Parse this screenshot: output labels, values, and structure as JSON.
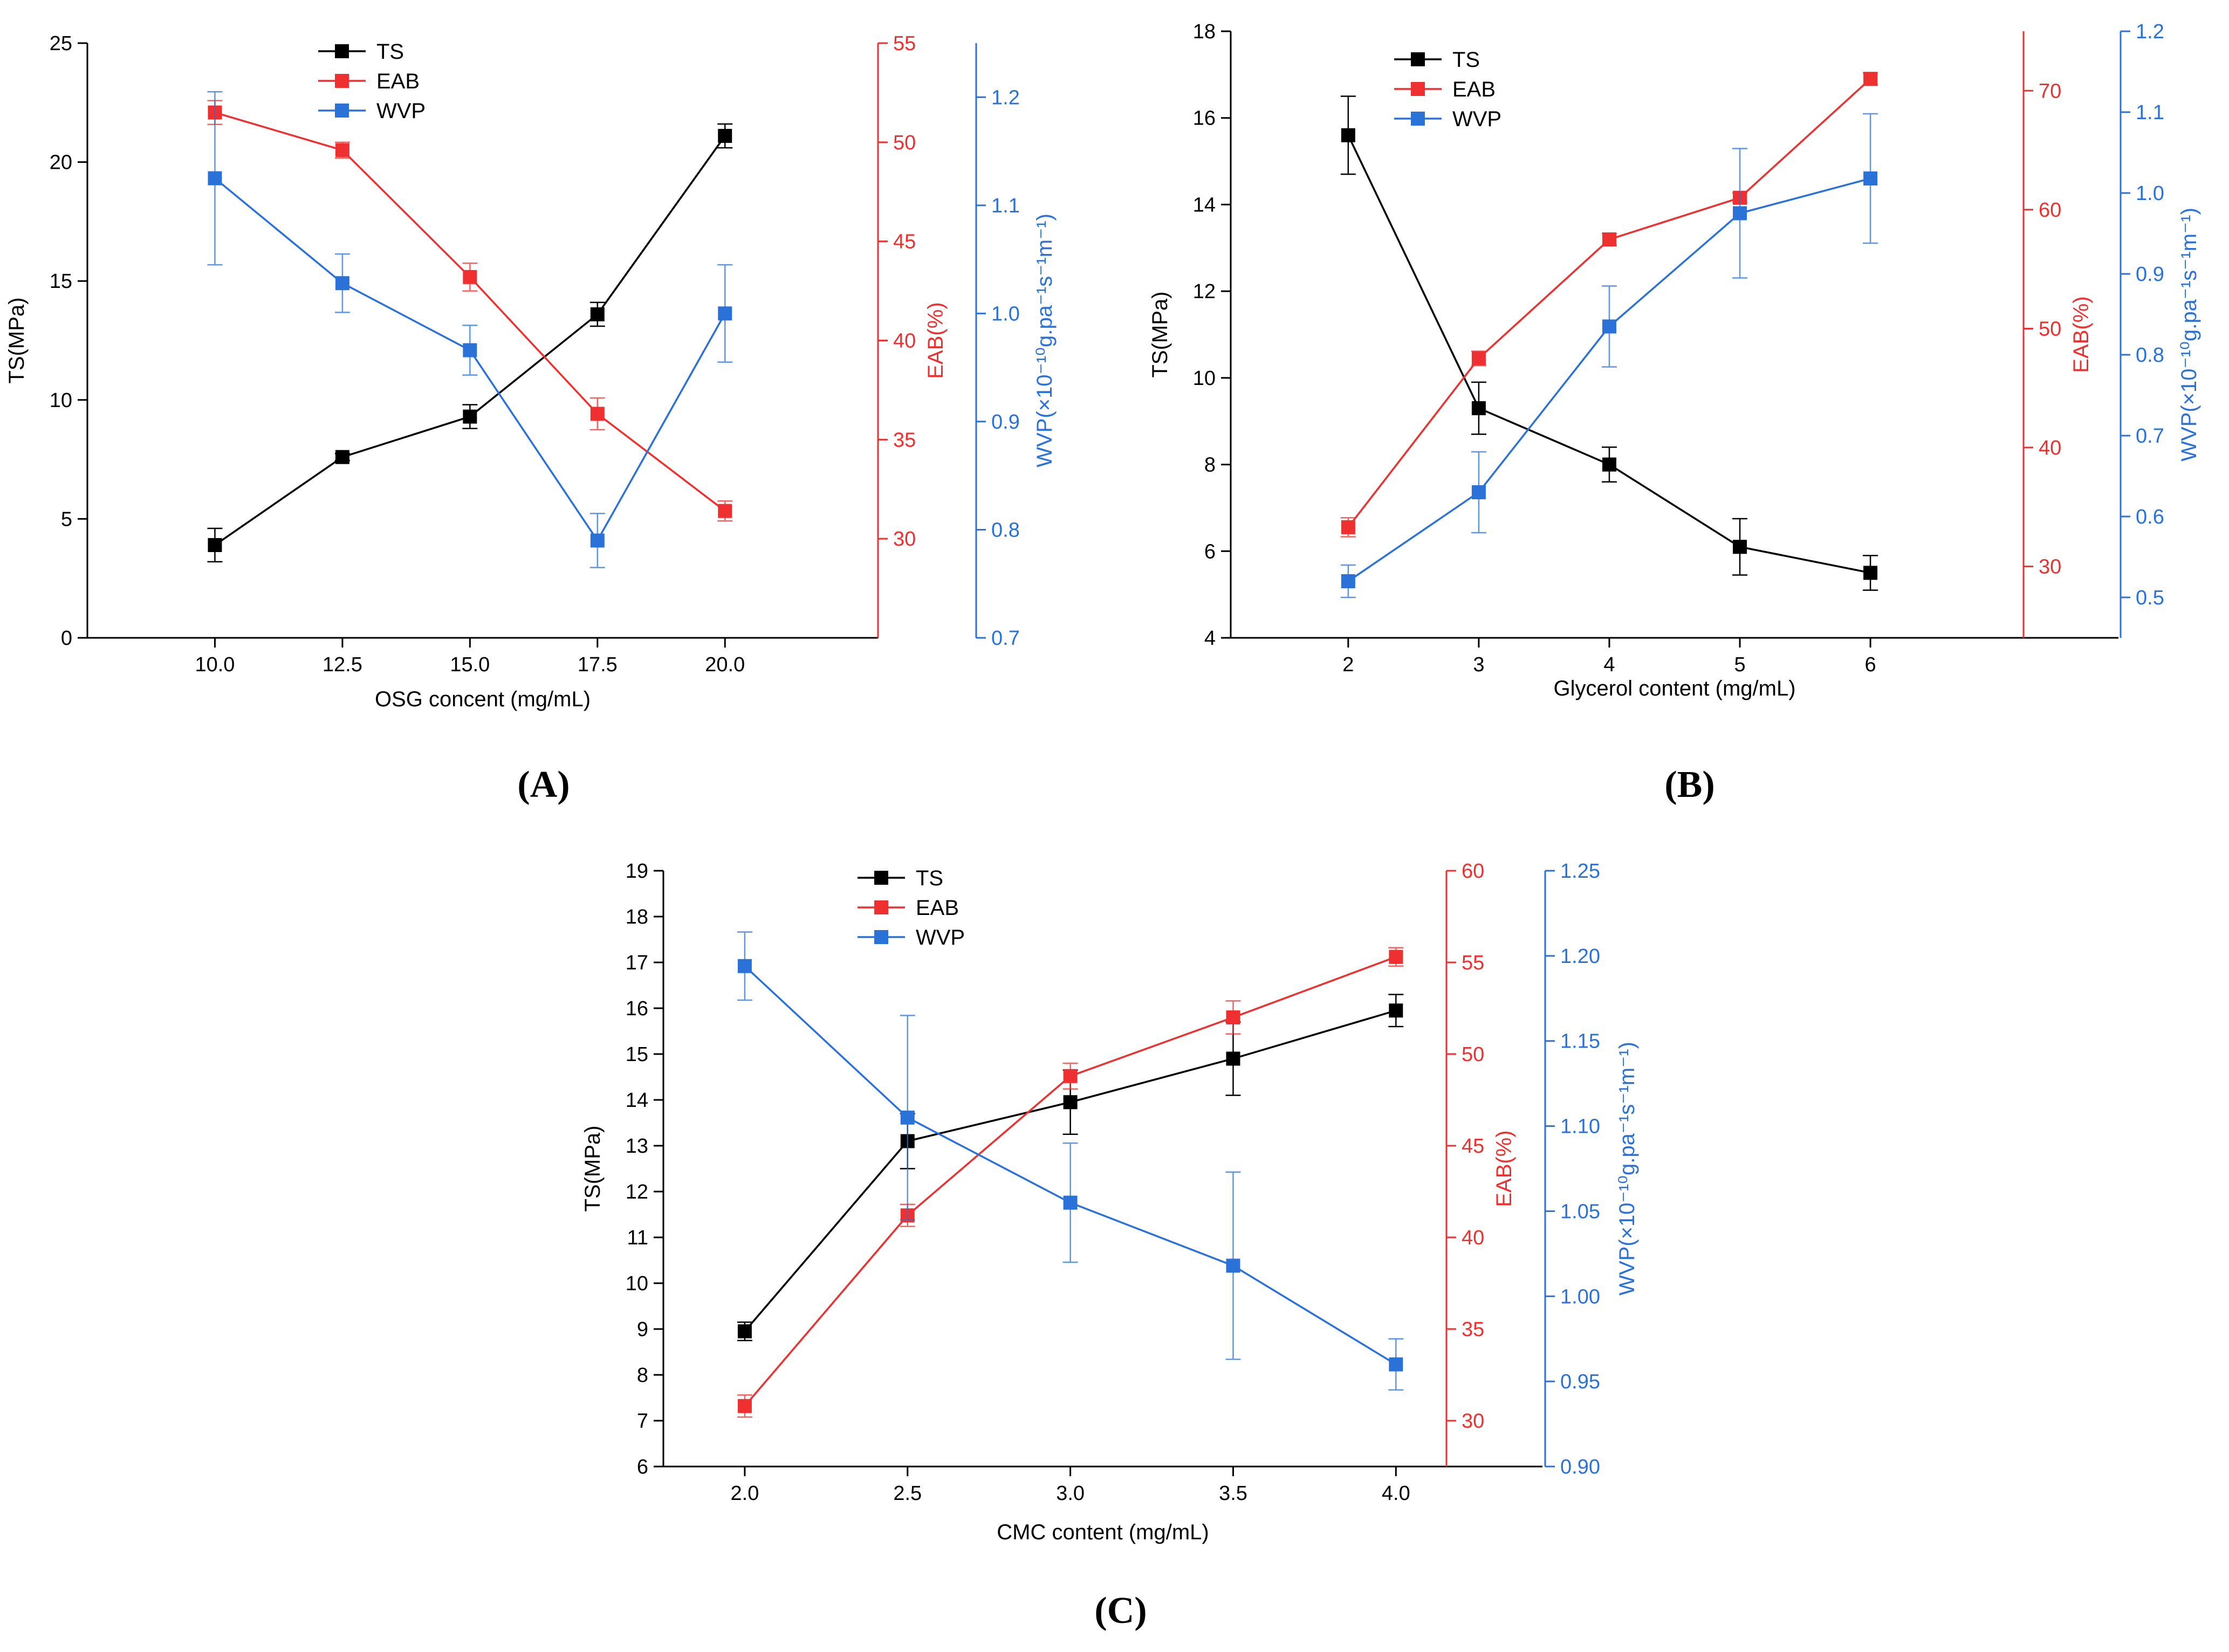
{
  "colors": {
    "TS": "#000000",
    "EAB": "#ee3030",
    "WVP": "#2a72d8",
    "axis": "#000000"
  },
  "chart_data": [
    {
      "panel": "(A)",
      "type": "line",
      "xlabel": "OSG concent (mg/mL)",
      "x": [
        10.0,
        12.5,
        15.0,
        17.5,
        20.0
      ],
      "xticks": [
        "10.0",
        "12.5",
        "15.0",
        "17.5",
        "20.0"
      ],
      "xlim": [
        7.5,
        23.0
      ],
      "axes": {
        "TS": {
          "label": "TS(MPa)",
          "lim": [
            0,
            25
          ],
          "ticks": [
            "0",
            "5",
            "10",
            "15",
            "20",
            "25"
          ]
        },
        "EAB": {
          "label": "EAB(%)",
          "lim": [
            25,
            55
          ],
          "ticks": [
            "30",
            "35",
            "40",
            "45",
            "50",
            "55"
          ]
        },
        "WVP": {
          "label": "WVP(×10⁻¹⁰g.pa⁻¹s⁻¹m⁻¹)",
          "lim": [
            0.7,
            1.25
          ],
          "ticks": [
            "0.7",
            "0.8",
            "0.9",
            "1.0",
            "1.1",
            "1.2"
          ]
        }
      },
      "legend": [
        "TS",
        "EAB",
        "WVP"
      ],
      "legend_position": "top-center",
      "series": [
        {
          "name": "TS",
          "values": [
            3.9,
            7.6,
            9.3,
            13.6,
            21.1
          ],
          "errors": [
            0.7,
            0.15,
            0.5,
            0.5,
            0.5
          ]
        },
        {
          "name": "EAB",
          "values": [
            51.5,
            49.6,
            43.2,
            36.3,
            31.4
          ],
          "errors": [
            0.6,
            0.4,
            0.7,
            0.8,
            0.5
          ]
        },
        {
          "name": "WVP",
          "values": [
            1.125,
            1.028,
            0.966,
            0.79,
            1.0
          ],
          "errors": [
            0.08,
            0.027,
            0.023,
            0.025,
            0.045
          ]
        }
      ]
    },
    {
      "panel": "(B)",
      "type": "line",
      "xlabel": "Glycerol content (mg/mL)",
      "x": [
        2,
        3,
        4,
        5,
        6
      ],
      "xticks": [
        "2",
        "3",
        "4",
        "5",
        "6"
      ],
      "xlim": [
        1.1,
        7.9
      ],
      "axes": {
        "TS": {
          "label": "TS(MPa)",
          "lim": [
            4,
            18
          ],
          "ticks": [
            "4",
            "6",
            "8",
            "10",
            "12",
            "14",
            "16",
            "18"
          ]
        },
        "EAB": {
          "label": "EAB(%)",
          "lim": [
            24,
            75
          ],
          "ticks": [
            "30",
            "40",
            "50",
            "60",
            "70"
          ]
        },
        "WVP": {
          "label": "WVP(×10⁻¹⁰g.pa⁻¹s⁻¹m⁻¹)",
          "lim": [
            0.45,
            1.2
          ],
          "ticks": [
            "0.5",
            "0.6",
            "0.7",
            "0.8",
            "0.9",
            "1.0",
            "1.1",
            "1.2"
          ]
        }
      },
      "legend": [
        "TS",
        "EAB",
        "WVP"
      ],
      "legend_position": "top-left",
      "series": [
        {
          "name": "TS",
          "values": [
            15.6,
            9.3,
            8.0,
            6.1,
            5.5
          ],
          "errors": [
            0.9,
            0.6,
            0.4,
            0.65,
            0.4
          ]
        },
        {
          "name": "EAB",
          "values": [
            33.3,
            47.5,
            57.5,
            61.0,
            71.0
          ],
          "errors": [
            0.8,
            0.6,
            0.5,
            0.4,
            0.5
          ]
        },
        {
          "name": "WVP",
          "values": [
            0.52,
            0.63,
            0.835,
            0.975,
            1.018
          ],
          "errors": [
            0.02,
            0.05,
            0.05,
            0.08,
            0.08
          ]
        }
      ]
    },
    {
      "panel": "(C)",
      "type": "line",
      "xlabel": "CMC content (mg/mL)",
      "x": [
        2.0,
        2.5,
        3.0,
        3.5,
        4.0
      ],
      "xticks": [
        "2.0",
        "2.5",
        "3.0",
        "3.5",
        "4.0"
      ],
      "xlim": [
        1.75,
        4.45
      ],
      "axes": {
        "TS": {
          "label": "TS(MPa)",
          "lim": [
            6,
            19
          ],
          "ticks": [
            "6",
            "7",
            "8",
            "9",
            "10",
            "11",
            "12",
            "13",
            "14",
            "15",
            "16",
            "17",
            "18",
            "19"
          ]
        },
        "EAB": {
          "label": "EAB(%)",
          "lim": [
            27.5,
            60
          ],
          "ticks": [
            "30",
            "35",
            "40",
            "45",
            "50",
            "55",
            "60"
          ]
        },
        "WVP": {
          "label": "WVP(×10⁻¹⁰g.pa⁻¹s⁻¹m⁻¹)",
          "lim": [
            0.9,
            1.25
          ],
          "ticks": [
            "0.90",
            "0.95",
            "1.00",
            "1.05",
            "1.10",
            "1.15",
            "1.20",
            "1.25"
          ]
        }
      },
      "legend": [
        "TS",
        "EAB",
        "WVP"
      ],
      "legend_position": "top-center",
      "series": [
        {
          "name": "TS",
          "values": [
            8.95,
            13.1,
            13.95,
            14.9,
            15.95
          ],
          "errors": [
            0.2,
            0.6,
            0.7,
            0.8,
            0.35
          ]
        },
        {
          "name": "EAB",
          "values": [
            30.8,
            41.2,
            48.8,
            52.0,
            55.3
          ],
          "errors": [
            0.6,
            0.6,
            0.7,
            0.9,
            0.5
          ]
        },
        {
          "name": "WVP",
          "values": [
            1.194,
            1.105,
            1.055,
            1.018,
            0.96
          ],
          "errors": [
            0.02,
            0.06,
            0.035,
            0.055,
            0.015
          ]
        }
      ]
    }
  ]
}
